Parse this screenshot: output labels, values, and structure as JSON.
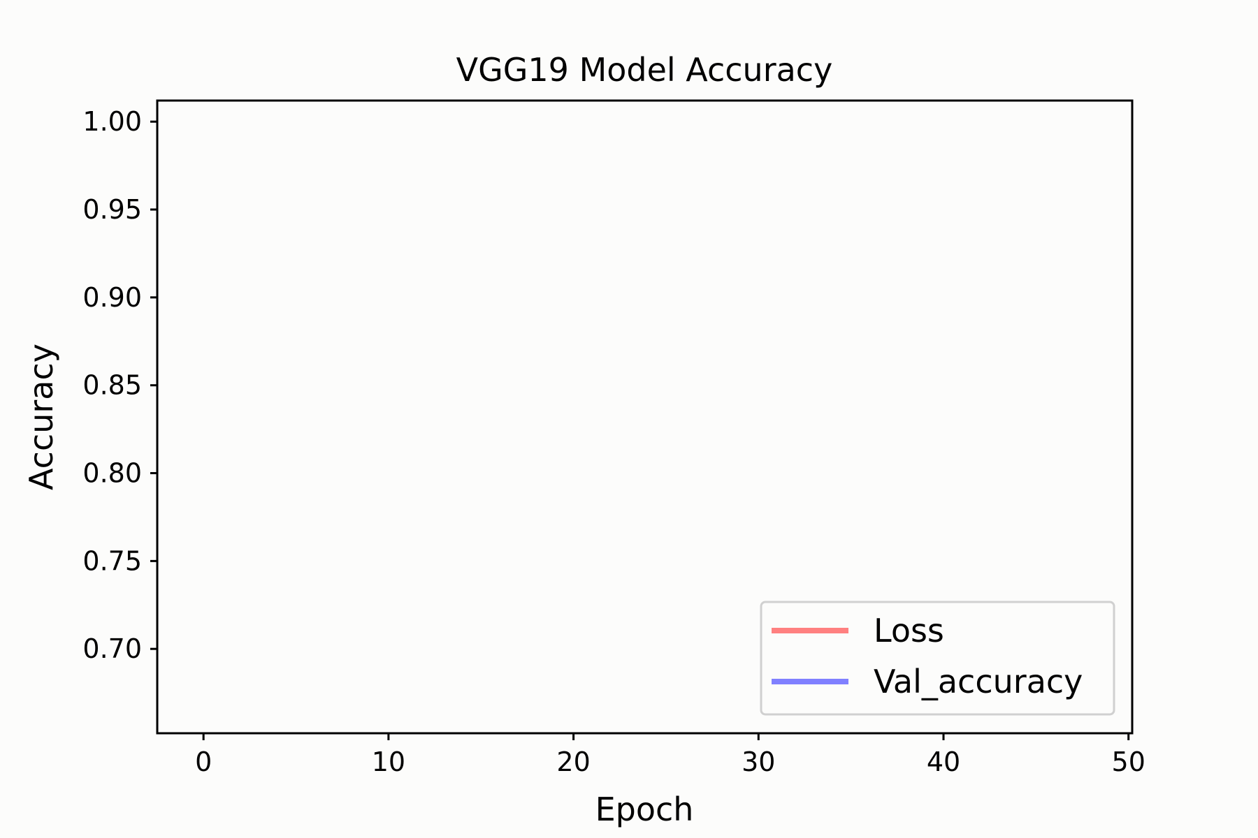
{
  "chart_data": {
    "type": "line",
    "title": "VGG19 Model Accuracy",
    "xlabel": "Epoch",
    "ylabel": "Accuracy",
    "xlim": [
      -2.5,
      50.2
    ],
    "ylim": [
      0.652,
      1.012
    ],
    "x_ticks": [
      0,
      10,
      20,
      30,
      40,
      50
    ],
    "x_tick_labels": [
      "0",
      "10",
      "20",
      "30",
      "40",
      "50"
    ],
    "y_ticks": [
      0.7,
      0.75,
      0.8,
      0.85,
      0.9,
      0.95,
      1.0
    ],
    "y_tick_labels": [
      "0.70",
      "0.75",
      "0.80",
      "0.85",
      "0.90",
      "0.95",
      "1.00"
    ],
    "grid": false,
    "legend_position": "lower-right",
    "series": [
      {
        "name": "Loss",
        "color": "#ff8080",
        "x": [],
        "y": []
      },
      {
        "name": "Val_accuracy",
        "color": "#8080ff",
        "x": [],
        "y": []
      }
    ]
  }
}
